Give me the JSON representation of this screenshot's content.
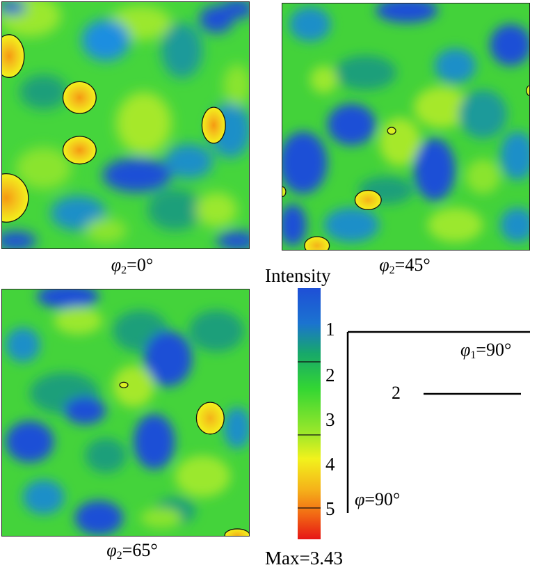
{
  "sections": [
    {
      "id": "phi2-0",
      "label": "φ2=0°",
      "phi": "φ",
      "sub": "2",
      "rest": "=0°"
    },
    {
      "id": "phi2-45",
      "label": "φ2=45°",
      "phi": "φ",
      "sub": "2",
      "rest": "=45°"
    },
    {
      "id": "phi2-65",
      "label": "φ2=65°",
      "phi": "φ",
      "sub": "2",
      "rest": "=65°"
    }
  ],
  "legend": {
    "title": "Intensity",
    "ticks": [
      "1",
      "2",
      "3",
      "4",
      "5"
    ],
    "max_label": "Max=3.43",
    "colors": [
      "#1e4fd6",
      "#17a86a",
      "#33d633",
      "#a8ea2a",
      "#f2f21c",
      "#f59a12",
      "#e61515"
    ]
  },
  "axes_key": {
    "phi1": {
      "phi": "φ",
      "sub": "1",
      "rest": "=90°"
    },
    "phi": {
      "phi": "φ",
      "rest": "=90°"
    },
    "step": "2"
  }
}
